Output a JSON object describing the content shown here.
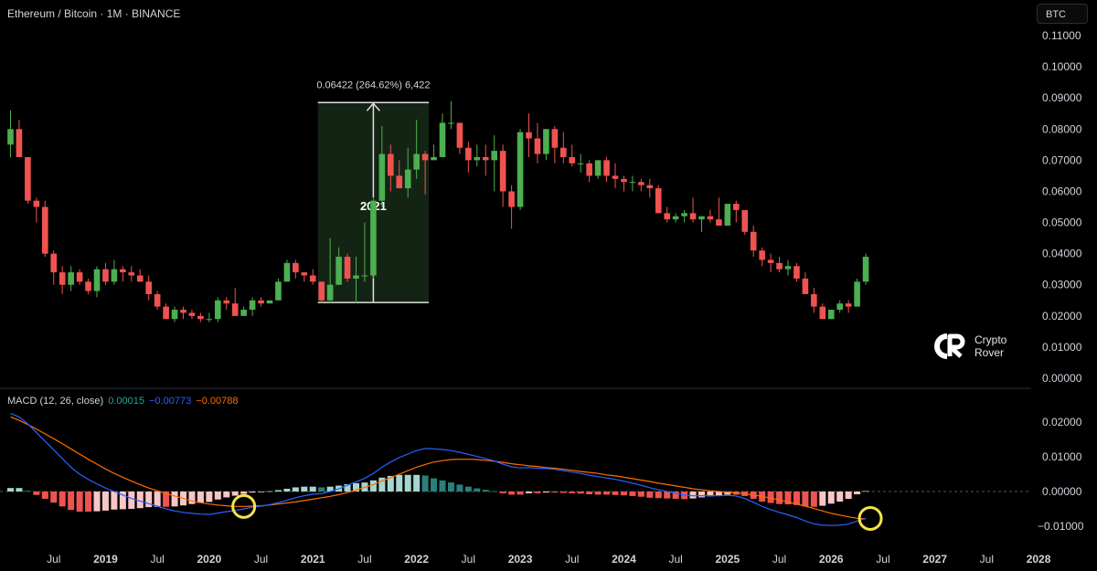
{
  "header": {
    "title": "Ethereum / Bitcoin · 1M · BINANCE"
  },
  "currency_badge": "BTC",
  "brand": {
    "line1": "Crypto",
    "line2": "Rover"
  },
  "macd_legend": {
    "name": "MACD (12, 26, close)",
    "hist": "0.00015",
    "macd": "−0.00773",
    "signal": "−0.00788",
    "colors": {
      "hist": "#26a69a",
      "macd": "#2962ff",
      "signal": "#ff6d00"
    }
  },
  "colors": {
    "up": "#4caf50",
    "down": "#ef5350",
    "highlight_fill": "#142414",
    "macd_line": "#2962ff",
    "signal_line": "#ff6d00",
    "hist_pos_strong": "#a5d6d0",
    "hist_pos_weak": "#2a7f7a",
    "hist_neg_strong": "#ef5350",
    "hist_neg_weak": "#f8c6c6",
    "circle": "#f5e34b"
  },
  "chart_data": [
    {
      "type": "candlestick",
      "title": "Ethereum / Bitcoin · 1M · BINANCE",
      "y_unit": "BTC",
      "ylim": [
        0,
        0.115
      ],
      "y_ticks": [
        "0.00000",
        "0.01000",
        "0.02000",
        "0.03000",
        "0.04000",
        "0.05000",
        "0.06000",
        "0.07000",
        "0.08000",
        "0.09000",
        "0.10000",
        "0.11000"
      ],
      "x_ticks": [
        "Jul",
        "2019",
        "Jul",
        "2020",
        "Jul",
        "2021",
        "Jul",
        "2022",
        "Jul",
        "2023",
        "Jul",
        "2024",
        "Jul",
        "2025",
        "Jul",
        "2026",
        "Jul",
        "2027",
        "Jul",
        "2028"
      ],
      "x_tick_dates": [
        "2018-07",
        "2019-01",
        "2019-07",
        "2020-01",
        "2020-07",
        "2021-01",
        "2021-07",
        "2022-01",
        "2022-07",
        "2023-01",
        "2023-07",
        "2024-01",
        "2024-07",
        "2025-01",
        "2025-07",
        "2026-01",
        "2026-07",
        "2027-01",
        "2027-07",
        "2028-01"
      ],
      "start": "2018-02",
      "candles": [
        [
          0.075,
          0.086,
          0.071,
          0.08
        ],
        [
          0.08,
          0.083,
          0.071,
          0.071
        ],
        [
          0.071,
          0.071,
          0.056,
          0.057
        ],
        [
          0.057,
          0.058,
          0.05,
          0.055
        ],
        [
          0.055,
          0.057,
          0.039,
          0.04
        ],
        [
          0.04,
          0.041,
          0.03,
          0.034
        ],
        [
          0.034,
          0.036,
          0.027,
          0.03
        ],
        [
          0.03,
          0.036,
          0.028,
          0.034
        ],
        [
          0.034,
          0.035,
          0.03,
          0.031
        ],
        [
          0.031,
          0.032,
          0.027,
          0.028
        ],
        [
          0.028,
          0.036,
          0.026,
          0.035
        ],
        [
          0.035,
          0.037,
          0.03,
          0.031
        ],
        [
          0.031,
          0.038,
          0.03,
          0.035
        ],
        [
          0.035,
          0.036,
          0.031,
          0.034
        ],
        [
          0.034,
          0.036,
          0.031,
          0.033
        ],
        [
          0.033,
          0.035,
          0.031,
          0.031
        ],
        [
          0.031,
          0.033,
          0.025,
          0.027
        ],
        [
          0.027,
          0.028,
          0.022,
          0.023
        ],
        [
          0.023,
          0.024,
          0.019,
          0.019
        ],
        [
          0.019,
          0.023,
          0.018,
          0.022
        ],
        [
          0.022,
          0.023,
          0.019,
          0.021
        ],
        [
          0.021,
          0.022,
          0.019,
          0.02
        ],
        [
          0.02,
          0.021,
          0.018,
          0.019
        ],
        [
          0.019,
          0.021,
          0.018,
          0.019
        ],
        [
          0.019,
          0.026,
          0.018,
          0.025
        ],
        [
          0.025,
          0.026,
          0.022,
          0.024
        ],
        [
          0.024,
          0.029,
          0.02,
          0.02
        ],
        [
          0.02,
          0.023,
          0.02,
          0.022
        ],
        [
          0.022,
          0.026,
          0.02,
          0.025
        ],
        [
          0.025,
          0.026,
          0.023,
          0.024
        ],
        [
          0.024,
          0.025,
          0.024,
          0.025
        ],
        [
          0.025,
          0.032,
          0.025,
          0.031
        ],
        [
          0.031,
          0.038,
          0.031,
          0.037
        ],
        [
          0.037,
          0.038,
          0.032,
          0.034
        ],
        [
          0.034,
          0.034,
          0.031,
          0.033
        ],
        [
          0.033,
          0.035,
          0.03,
          0.031
        ],
        [
          0.031,
          0.031,
          0.024,
          0.025
        ],
        [
          0.025,
          0.045,
          0.024,
          0.03
        ],
        [
          0.03,
          0.042,
          0.03,
          0.039
        ],
        [
          0.039,
          0.04,
          0.031,
          0.032
        ],
        [
          0.032,
          0.039,
          0.024,
          0.033
        ],
        [
          0.033,
          0.05,
          0.031,
          0.033
        ],
        [
          0.033,
          0.058,
          0.032,
          0.057
        ],
        [
          0.057,
          0.081,
          0.055,
          0.072
        ],
        [
          0.072,
          0.075,
          0.06,
          0.065
        ],
        [
          0.065,
          0.07,
          0.061,
          0.061
        ],
        [
          0.061,
          0.074,
          0.058,
          0.067
        ],
        [
          0.067,
          0.083,
          0.064,
          0.072
        ],
        [
          0.072,
          0.073,
          0.059,
          0.07
        ],
        [
          0.07,
          0.075,
          0.07,
          0.071
        ],
        [
          0.071,
          0.085,
          0.071,
          0.082
        ],
        [
          0.082,
          0.089,
          0.08,
          0.082
        ],
        [
          0.082,
          0.082,
          0.072,
          0.074
        ],
        [
          0.074,
          0.076,
          0.066,
          0.07
        ],
        [
          0.07,
          0.075,
          0.068,
          0.071
        ],
        [
          0.071,
          0.075,
          0.065,
          0.07
        ],
        [
          0.07,
          0.078,
          0.06,
          0.073
        ],
        [
          0.073,
          0.075,
          0.055,
          0.06
        ],
        [
          0.06,
          0.062,
          0.048,
          0.055
        ],
        [
          0.055,
          0.08,
          0.054,
          0.079
        ],
        [
          0.079,
          0.085,
          0.071,
          0.077
        ],
        [
          0.077,
          0.082,
          0.069,
          0.072
        ],
        [
          0.072,
          0.08,
          0.07,
          0.08
        ],
        [
          0.08,
          0.081,
          0.069,
          0.074
        ],
        [
          0.074,
          0.079,
          0.069,
          0.071
        ],
        [
          0.071,
          0.075,
          0.068,
          0.069
        ],
        [
          0.069,
          0.072,
          0.066,
          0.069
        ],
        [
          0.069,
          0.07,
          0.063,
          0.065
        ],
        [
          0.065,
          0.07,
          0.064,
          0.07
        ],
        [
          0.07,
          0.071,
          0.063,
          0.065
        ],
        [
          0.065,
          0.069,
          0.061,
          0.064
        ],
        [
          0.064,
          0.065,
          0.06,
          0.063
        ],
        [
          0.063,
          0.065,
          0.06,
          0.063
        ],
        [
          0.063,
          0.064,
          0.06,
          0.062
        ],
        [
          0.062,
          0.064,
          0.058,
          0.061
        ],
        [
          0.061,
          0.062,
          0.053,
          0.053
        ],
        [
          0.053,
          0.055,
          0.05,
          0.051
        ],
        [
          0.051,
          0.053,
          0.05,
          0.052
        ],
        [
          0.052,
          0.054,
          0.05,
          0.053
        ],
        [
          0.053,
          0.058,
          0.05,
          0.051
        ],
        [
          0.051,
          0.052,
          0.047,
          0.052
        ],
        [
          0.052,
          0.054,
          0.05,
          0.051
        ],
        [
          0.051,
          0.058,
          0.049,
          0.049
        ],
        [
          0.049,
          0.055,
          0.049,
          0.056
        ],
        [
          0.056,
          0.057,
          0.05,
          0.054
        ],
        [
          0.054,
          0.054,
          0.046,
          0.047
        ],
        [
          0.047,
          0.049,
          0.039,
          0.041
        ],
        [
          0.041,
          0.042,
          0.036,
          0.038
        ],
        [
          0.038,
          0.04,
          0.034,
          0.037
        ],
        [
          0.037,
          0.039,
          0.034,
          0.035
        ],
        [
          0.035,
          0.038,
          0.033,
          0.036
        ],
        [
          0.036,
          0.037,
          0.031,
          0.032
        ],
        [
          0.032,
          0.034,
          0.027,
          0.027
        ],
        [
          0.027,
          0.029,
          0.021,
          0.023
        ],
        [
          0.023,
          0.024,
          0.019,
          0.019
        ],
        [
          0.019,
          0.022,
          0.019,
          0.022
        ],
        [
          0.022,
          0.025,
          0.021,
          0.024
        ],
        [
          0.024,
          0.025,
          0.021,
          0.023
        ],
        [
          0.023,
          0.032,
          0.023,
          0.031
        ],
        [
          0.031,
          0.04,
          0.03,
          0.039
        ]
      ],
      "annotation": {
        "label": "0.06422 (264.62%) 6,422",
        "year": "2021",
        "from_index": 36,
        "to_index": 48,
        "low": 0.0243,
        "high": 0.0885
      }
    },
    {
      "type": "macd",
      "title": "MACD (12, 26, close)",
      "ylim": [
        -0.0125,
        0.0245
      ],
      "y_ticks": [
        "0.02000",
        "0.01000",
        "0.00000",
        "-0.01000"
      ],
      "macd": [
        0.0225,
        0.0215,
        0.0195,
        0.017,
        0.0145,
        0.012,
        0.0095,
        0.007,
        0.005,
        0.0035,
        0.0022,
        0.001,
        0.0,
        -0.001,
        -0.002,
        -0.0028,
        -0.0035,
        -0.0042,
        -0.005,
        -0.0056,
        -0.006,
        -0.0063,
        -0.0065,
        -0.0066,
        -0.0062,
        -0.0058,
        -0.0055,
        -0.005,
        -0.0045,
        -0.0042,
        -0.0038,
        -0.0032,
        -0.0025,
        -0.0018,
        -0.0012,
        -0.0008,
        -0.0006,
        0.0,
        0.0008,
        0.0018,
        0.0028,
        0.0038,
        0.0052,
        0.007,
        0.0085,
        0.0098,
        0.0108,
        0.0118,
        0.0124,
        0.0123,
        0.0121,
        0.0118,
        0.0113,
        0.0107,
        0.0101,
        0.0095,
        0.0088,
        0.0079,
        0.0071,
        0.0068,
        0.0069,
        0.0067,
        0.0066,
        0.0064,
        0.006,
        0.0056,
        0.0052,
        0.0047,
        0.0043,
        0.0039,
        0.0035,
        0.003,
        0.0024,
        0.0018,
        0.0011,
        0.0005,
        0.0,
        -0.0005,
        -0.001,
        -0.0012,
        -0.0012,
        -0.0012,
        -0.0012,
        -0.0011,
        -0.0013,
        -0.002,
        -0.0031,
        -0.0043,
        -0.0052,
        -0.006,
        -0.0067,
        -0.0075,
        -0.0085,
        -0.0093,
        -0.0097,
        -0.0098,
        -0.0097,
        -0.0094,
        -0.0085,
        -0.00773
      ],
      "signal": [
        0.0215,
        0.0205,
        0.0193,
        0.018,
        0.0166,
        0.0152,
        0.0138,
        0.0123,
        0.0108,
        0.0093,
        0.0079,
        0.0065,
        0.0052,
        0.0041,
        0.003,
        0.002,
        0.001,
        0.0002,
        -0.0006,
        -0.0013,
        -0.002,
        -0.0027,
        -0.0032,
        -0.0036,
        -0.0039,
        -0.0041,
        -0.0043,
        -0.0043,
        -0.0042,
        -0.0041,
        -0.0039,
        -0.0036,
        -0.0033,
        -0.003,
        -0.0026,
        -0.0022,
        -0.0018,
        -0.0014,
        -0.0009,
        -0.0003,
        0.0004,
        0.0012,
        0.002,
        0.003,
        0.004,
        0.005,
        0.006,
        0.007,
        0.0078,
        0.0085,
        0.0089,
        0.0092,
        0.0093,
        0.0093,
        0.0092,
        0.009,
        0.0087,
        0.0084,
        0.008,
        0.0077,
        0.0074,
        0.0072,
        0.0069,
        0.0067,
        0.0064,
        0.0061,
        0.0058,
        0.0055,
        0.0052,
        0.0048,
        0.0045,
        0.0041,
        0.0037,
        0.0033,
        0.0029,
        0.0024,
        0.002,
        0.0016,
        0.0012,
        0.0008,
        0.0005,
        0.0002,
        0.0,
        -0.0002,
        -0.0004,
        -0.0007,
        -0.001,
        -0.0014,
        -0.0019,
        -0.0024,
        -0.003,
        -0.0036,
        -0.0042,
        -0.0049,
        -0.0056,
        -0.0063,
        -0.0068,
        -0.0073,
        -0.0077,
        -0.00788
      ],
      "histogram": [
        0.001,
        0.001,
        0.0002,
        -0.001,
        -0.0021,
        -0.0032,
        -0.0043,
        -0.0053,
        -0.0058,
        -0.0058,
        -0.0057,
        -0.0055,
        -0.0052,
        -0.0051,
        -0.005,
        -0.0048,
        -0.0045,
        -0.0044,
        -0.0044,
        -0.0043,
        -0.004,
        -0.0036,
        -0.0033,
        -0.003,
        -0.0023,
        -0.0017,
        -0.0012,
        -0.0007,
        -0.0003,
        -0.0001,
        0.0001,
        0.0004,
        0.0008,
        0.0012,
        0.0014,
        0.0014,
        0.0012,
        0.0014,
        0.0017,
        0.0021,
        0.0024,
        0.0026,
        0.0032,
        0.004,
        0.0045,
        0.0048,
        0.0048,
        0.0048,
        0.0046,
        0.0038,
        0.0032,
        0.0026,
        0.002,
        0.0014,
        0.0009,
        0.0005,
        0.0001,
        -0.0005,
        -0.0009,
        -0.0009,
        -0.0005,
        -0.0005,
        -0.0003,
        -0.0003,
        -0.0004,
        -0.0005,
        -0.0006,
        -0.0008,
        -0.0009,
        -0.0009,
        -0.001,
        -0.0011,
        -0.0013,
        -0.0015,
        -0.0018,
        -0.0019,
        -0.002,
        -0.0021,
        -0.0022,
        -0.002,
        -0.0017,
        -0.0014,
        -0.0012,
        -0.0009,
        -0.0009,
        -0.0013,
        -0.0021,
        -0.0029,
        -0.0033,
        -0.0036,
        -0.0037,
        -0.0039,
        -0.0043,
        -0.0044,
        -0.0041,
        -0.0035,
        -0.0029,
        -0.0021,
        -0.0008,
        0.00015
      ],
      "signal_circles": [
        27,
        99
      ]
    }
  ]
}
